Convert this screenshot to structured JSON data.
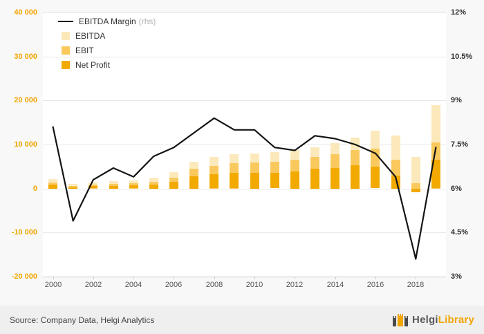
{
  "page": {
    "source_text": "Source: Company Data, Helgi Analytics",
    "logo": {
      "text_primary": "Helgi",
      "text_secondary": "Library",
      "icon": "castle-icon"
    }
  },
  "chart_data": {
    "type": "bar",
    "subtype": "stacked bars with overlay line (right axis)",
    "categories": [
      "2000",
      "2001",
      "2002",
      "2003",
      "2004",
      "2005",
      "2006",
      "2007",
      "2008",
      "2009",
      "2010",
      "2011",
      "2012",
      "2013",
      "2014",
      "2015",
      "2016",
      "2017",
      "2018",
      "2019"
    ],
    "series": [
      {
        "name": "EBITDA Margin",
        "type": "line",
        "axis": "right",
        "unit": "%",
        "color": "#141414",
        "values": [
          8.1,
          4.9,
          6.3,
          6.7,
          6.4,
          7.1,
          7.4,
          7.9,
          8.4,
          8.0,
          8.0,
          7.4,
          7.3,
          7.8,
          7.7,
          7.5,
          7.2,
          6.4,
          3.6,
          7.4
        ]
      },
      {
        "name": "EBITDA",
        "type": "bar",
        "axis": "left",
        "color": "#fce9bb",
        "values": [
          2100,
          1000,
          1400,
          1600,
          1900,
          2400,
          3700,
          6000,
          7200,
          7800,
          7900,
          8200,
          8700,
          9300,
          10300,
          11500,
          13100,
          12000,
          7100,
          19000
        ]
      },
      {
        "name": "EBIT",
        "type": "bar",
        "axis": "left",
        "color": "#f9c95e",
        "values": [
          1400,
          600,
          900,
          1000,
          1200,
          1500,
          2500,
          4500,
          5200,
          5800,
          5900,
          6000,
          6500,
          7200,
          7800,
          8800,
          9000,
          6500,
          1200,
          10500
        ]
      },
      {
        "name": "Net Profit",
        "type": "bar",
        "axis": "left",
        "color": "#f2a900",
        "values": [
          900,
          300,
          500,
          600,
          700,
          900,
          1500,
          2800,
          3200,
          3500,
          3600,
          3500,
          3900,
          4500,
          4700,
          5300,
          4900,
          3000,
          -800,
          6500
        ]
      }
    ],
    "legend_rhs_suffix": "(rhs)",
    "legend_position": "top-left",
    "grid": true,
    "left_axis": {
      "min": -20000,
      "max": 40000,
      "color": "#f0a500",
      "ticks": [
        40000,
        30000,
        20000,
        10000,
        0,
        -10000,
        -20000
      ],
      "tick_labels": [
        "40 000",
        "30 000",
        "20 000",
        "10 000",
        "0",
        "-10 000",
        "-20 000"
      ]
    },
    "right_axis": {
      "min": 3,
      "max": 12,
      "color": "#333333",
      "tick_labels": [
        "12%",
        "10.5%",
        "9%",
        "7.5%",
        "6%",
        "4.5%",
        "3%"
      ]
    },
    "x_tick_labels": [
      "2000",
      "2002",
      "2004",
      "2006",
      "2008",
      "2010",
      "2012",
      "2014",
      "2016",
      "2018"
    ]
  }
}
